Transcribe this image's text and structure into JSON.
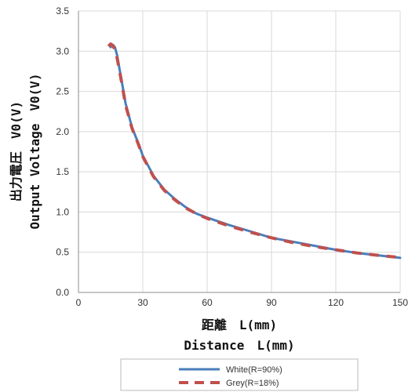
{
  "chart_data": {
    "type": "line",
    "xlabel": [
      "距離　L(mm)",
      "Distance　L(mm)"
    ],
    "ylabel": [
      "出力電圧　V0(V)",
      "Output Voltage　V0(V)"
    ],
    "xlim": [
      0,
      150
    ],
    "ylim": [
      0,
      3.5
    ],
    "xticks": [
      0,
      30,
      60,
      90,
      120,
      150
    ],
    "yticks": [
      0.0,
      0.5,
      1.0,
      1.5,
      2.0,
      2.5,
      3.0,
      3.5
    ],
    "xtick_labels": [
      "0",
      "30",
      "60",
      "90",
      "120",
      "150"
    ],
    "ytick_labels": [
      "0.0",
      "0.5",
      "1.0",
      "1.5",
      "2.0",
      "2.5",
      "3.0",
      "3.5"
    ],
    "grid": true,
    "legend_position": "bottom-center",
    "series": [
      {
        "name": "White(R=90%)",
        "color": "#4a7ebb",
        "style": "solid",
        "x": [
          15,
          16,
          17,
          18,
          20,
          22,
          25,
          28,
          30,
          35,
          40,
          45,
          50,
          55,
          60,
          70,
          80,
          90,
          100,
          110,
          120,
          130,
          140,
          150
        ],
        "y": [
          3.05,
          3.08,
          3.05,
          2.95,
          2.65,
          2.35,
          2.05,
          1.85,
          1.7,
          1.45,
          1.28,
          1.16,
          1.06,
          0.98,
          0.93,
          0.84,
          0.76,
          0.68,
          0.63,
          0.58,
          0.53,
          0.49,
          0.46,
          0.43
        ]
      },
      {
        "name": "Grey(R=18%)",
        "color": "#c0504d",
        "style": "dashed",
        "x": [
          14,
          15,
          16,
          17,
          18,
          20,
          22,
          25,
          28,
          30,
          35,
          40,
          45,
          50,
          55,
          60,
          70,
          80,
          90,
          100,
          110,
          120,
          130,
          140,
          148
        ],
        "y": [
          3.06,
          3.09,
          3.07,
          3.02,
          2.92,
          2.63,
          2.33,
          2.04,
          1.84,
          1.69,
          1.44,
          1.27,
          1.15,
          1.05,
          0.98,
          0.92,
          0.83,
          0.75,
          0.68,
          0.62,
          0.57,
          0.53,
          0.49,
          0.46,
          0.44
        ]
      }
    ]
  }
}
